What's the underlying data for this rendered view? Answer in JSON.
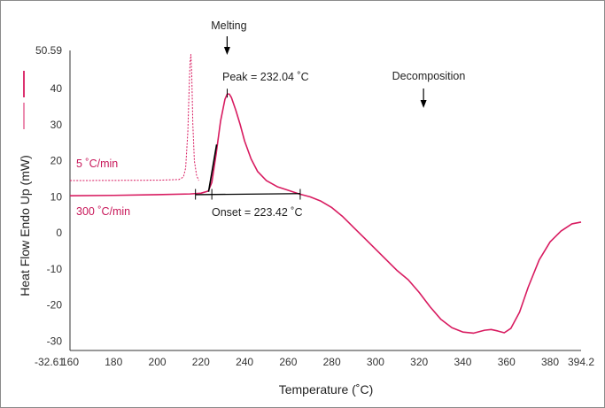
{
  "chart_data": {
    "type": "line",
    "xlabel": "Temperature (˚C)",
    "ylabel": "Heat Flow Endo Up (mW)",
    "xlim": [
      160,
      394.2
    ],
    "ylim": [
      -32.61,
      50.59
    ],
    "x_ticks": [
      "160",
      "180",
      "200",
      "220",
      "240",
      "260",
      "280",
      "300",
      "320",
      "340",
      "360",
      "380",
      "394.2"
    ],
    "y_ticks": [
      "50.59",
      "40",
      "30",
      "20",
      "10",
      "0",
      "-10",
      "-20",
      "-30"
    ],
    "y_min_label": "-32.61",
    "x_tick_values": [
      160,
      180,
      200,
      220,
      240,
      260,
      280,
      300,
      320,
      340,
      360,
      380,
      394.2
    ],
    "y_tick_values": [
      50.59,
      40,
      30,
      20,
      10,
      0,
      -10,
      -20,
      -30
    ],
    "series": [
      {
        "name": "300 ˚C/min",
        "color": "#d81b60",
        "style": "solid",
        "points": [
          [
            160,
            10.3
          ],
          [
            180,
            10.4
          ],
          [
            200,
            10.6
          ],
          [
            215,
            10.8
          ],
          [
            220,
            11.0
          ],
          [
            223.4,
            11.6
          ],
          [
            225,
            14
          ],
          [
            227,
            22
          ],
          [
            229,
            31
          ],
          [
            231,
            37
          ],
          [
            232.04,
            38.5
          ],
          [
            233,
            38.5
          ],
          [
            234,
            37.5
          ],
          [
            236,
            34
          ],
          [
            238,
            30
          ],
          [
            240,
            25.5
          ],
          [
            243,
            20.5
          ],
          [
            246,
            17
          ],
          [
            250,
            14.5
          ],
          [
            255,
            12.8
          ],
          [
            260,
            11.8
          ],
          [
            265,
            10.8
          ],
          [
            270,
            10.0
          ],
          [
            275,
            8.8
          ],
          [
            280,
            7.0
          ],
          [
            285,
            4.5
          ],
          [
            290,
            1.5
          ],
          [
            295,
            -1.5
          ],
          [
            300,
            -4.5
          ],
          [
            305,
            -7.5
          ],
          [
            310,
            -10.5
          ],
          [
            315,
            -13
          ],
          [
            320,
            -16.5
          ],
          [
            325,
            -20.5
          ],
          [
            330,
            -24
          ],
          [
            335,
            -26.3
          ],
          [
            340,
            -27.5
          ],
          [
            345,
            -27.8
          ],
          [
            350,
            -27.0
          ],
          [
            353,
            -26.8
          ],
          [
            356,
            -27.2
          ],
          [
            359,
            -27.7
          ],
          [
            362,
            -26.5
          ],
          [
            366,
            -22
          ],
          [
            370,
            -15
          ],
          [
            375,
            -7.5
          ],
          [
            380,
            -2.5
          ],
          [
            385,
            0.5
          ],
          [
            390,
            2.5
          ],
          [
            394.2,
            3.0
          ]
        ]
      },
      {
        "name": "5 ˚C/min",
        "color": "#d81b60",
        "style": "dotted",
        "points": [
          [
            160,
            14.5
          ],
          [
            200,
            14.6
          ],
          [
            210,
            14.8
          ],
          [
            212,
            15.5
          ],
          [
            213,
            18
          ],
          [
            214,
            28
          ],
          [
            214.6,
            40
          ],
          [
            215,
            47
          ],
          [
            215.4,
            49.5
          ],
          [
            215.8,
            44
          ],
          [
            216.3,
            30
          ],
          [
            217,
            20
          ],
          [
            218,
            16
          ],
          [
            219,
            14.5
          ]
        ]
      }
    ],
    "annotations": [
      {
        "text": "Melting",
        "x": 232,
        "y": 52.5,
        "arrow": true
      },
      {
        "text": "Peak = 232.04 ˚C",
        "x": 232.04,
        "y": 38.5
      },
      {
        "text": "Decomposition",
        "x": 322,
        "y": 44.5,
        "arrow": true
      },
      {
        "text": "Onset = 223.42 ˚C",
        "x": 223.42,
        "y": 10.8
      }
    ],
    "grid": false,
    "legend": "left, swatches above the y-axis label"
  }
}
